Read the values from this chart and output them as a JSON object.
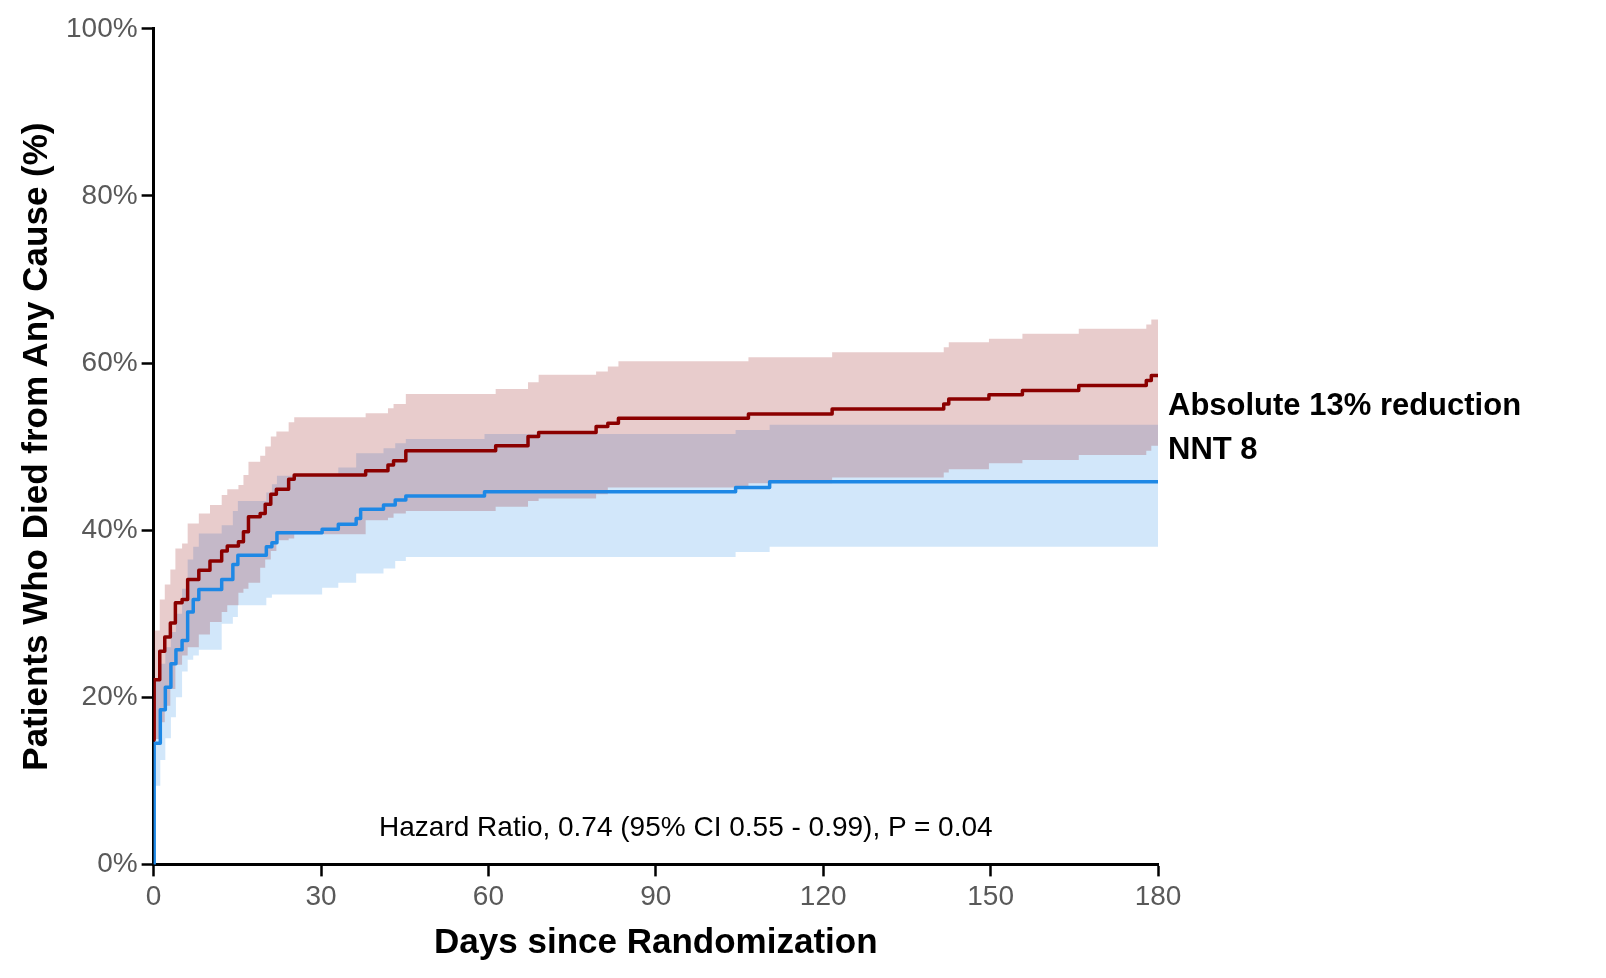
{
  "chart_data": {
    "type": "step",
    "xlabel": "Days since Randomization",
    "ylabel": "Patients Who Died from Any Cause (%)",
    "xlim": [
      0,
      180
    ],
    "xticks": [
      0,
      30,
      60,
      90,
      120,
      150,
      180
    ],
    "ylim": [
      0,
      100
    ],
    "yticks": [
      {
        "value": 0,
        "label": "0%"
      },
      {
        "value": 20,
        "label": "20%"
      },
      {
        "value": 40,
        "label": "40%"
      },
      {
        "value": 60,
        "label": "60%"
      },
      {
        "value": 80,
        "label": "80%"
      },
      {
        "value": 100,
        "label": "100%"
      }
    ],
    "grid": false,
    "legend": false,
    "annotations": [
      "Hazard Ratio, 0.74 (95% CI 0.55 - 0.99), P = 0.04",
      "Absolute 13% reduction\nNNT 8"
    ],
    "series": [
      {
        "color": "#8b0000",
        "x": [
          0,
          0.1,
          1.1,
          2,
          3,
          3.9,
          5.1,
          6.1,
          8.1,
          10.1,
          12.2,
          13.2,
          15.2,
          16.1,
          17,
          19.1,
          20,
          21,
          22,
          24.2,
          25.2,
          38,
          42,
          43,
          45.2,
          61.3,
          67.1,
          69,
          79.3,
          81.4,
          83.3,
          106.6,
          121.6,
          141.6,
          142.5,
          149.7,
          155.7,
          165.8,
          177.9,
          178.8,
          180
        ],
        "values": [
          14.9,
          22.1,
          25.5,
          27.2,
          28.9,
          31.3,
          31.7,
          34.1,
          35.2,
          36.3,
          37.5,
          38.1,
          38.6,
          39.8,
          41.6,
          42.0,
          43.1,
          44.3,
          44.9,
          46.1,
          46.6,
          47.1,
          47.8,
          48.3,
          49.5,
          50.1,
          51.2,
          51.7,
          52.4,
          52.8,
          53.4,
          53.9,
          54.5,
          55.1,
          55.7,
          56.2,
          56.7,
          57.3,
          57.9,
          58.5,
          58.5
        ],
        "upper": [
          28,
          28,
          31.7,
          33.5,
          35.3,
          37.8,
          38.4,
          40.8,
          42,
          43,
          44.2,
          44.9,
          45.4,
          46.6,
          48.2,
          48.9,
          50,
          51.2,
          51.8,
          52.9,
          53.5,
          54,
          54.6,
          55.1,
          56.3,
          56.9,
          57.7,
          58.6,
          59,
          59.6,
          60.2,
          60.7,
          61.3,
          61.9,
          62.5,
          62.9,
          63.5,
          64.1,
          64.6,
          65.2,
          65.2
        ],
        "lower": [
          9,
          15,
          17,
          19,
          21,
          23.9,
          25,
          26,
          27.5,
          29,
          30.2,
          31,
          32.5,
          33,
          33.7,
          35.5,
          36.5,
          37.5,
          38.8,
          39,
          39.5,
          41.2,
          41.5,
          42,
          42.3,
          42.8,
          43.5,
          43.8,
          44.3,
          45.1,
          45.1,
          45.6,
          46.3,
          46.9,
          47.3,
          48,
          48.4,
          49,
          49.5,
          50.1,
          50.1
        ]
      },
      {
        "color": "#1e88e5",
        "x": [
          0,
          0.1,
          1.2,
          2.1,
          3.1,
          4,
          5.1,
          6.1,
          7.1,
          8.1,
          12.2,
          14.2,
          15.1,
          20.2,
          21.2,
          22.1,
          30.2,
          33.1,
          36.3,
          37.1,
          41.2,
          43.3,
          45.2,
          59.3,
          104.3,
          110.4,
          180
        ],
        "values": [
          0,
          14.5,
          18.5,
          21.2,
          24.0,
          25.7,
          26.8,
          30.2,
          31.7,
          32.9,
          34.1,
          35.9,
          37.0,
          38.0,
          38.5,
          39.7,
          40.1,
          40.7,
          41.4,
          42.5,
          43.0,
          43.6,
          44.1,
          44.6,
          45.1,
          45.8,
          45.8
        ],
        "upper": [
          null,
          22,
          24,
          26,
          27.8,
          30,
          33,
          36.5,
          38,
          39.6,
          40.6,
          42.3,
          43.5,
          44.5,
          45.5,
          46.5,
          46.5,
          47.5,
          49.2,
          49.2,
          49.8,
          50.4,
          50.9,
          51.5,
          52,
          52.6,
          52.6
        ],
        "lower": [
          null,
          9.4,
          12.5,
          15.1,
          17.6,
          20,
          23.1,
          24.5,
          25,
          25.7,
          28.8,
          29.6,
          31,
          31.9,
          32.3,
          32.3,
          33.1,
          33.7,
          34.8,
          34.8,
          35.4,
          36.3,
          36.8,
          36.8,
          37.4,
          38,
          38
        ]
      }
    ]
  }
}
